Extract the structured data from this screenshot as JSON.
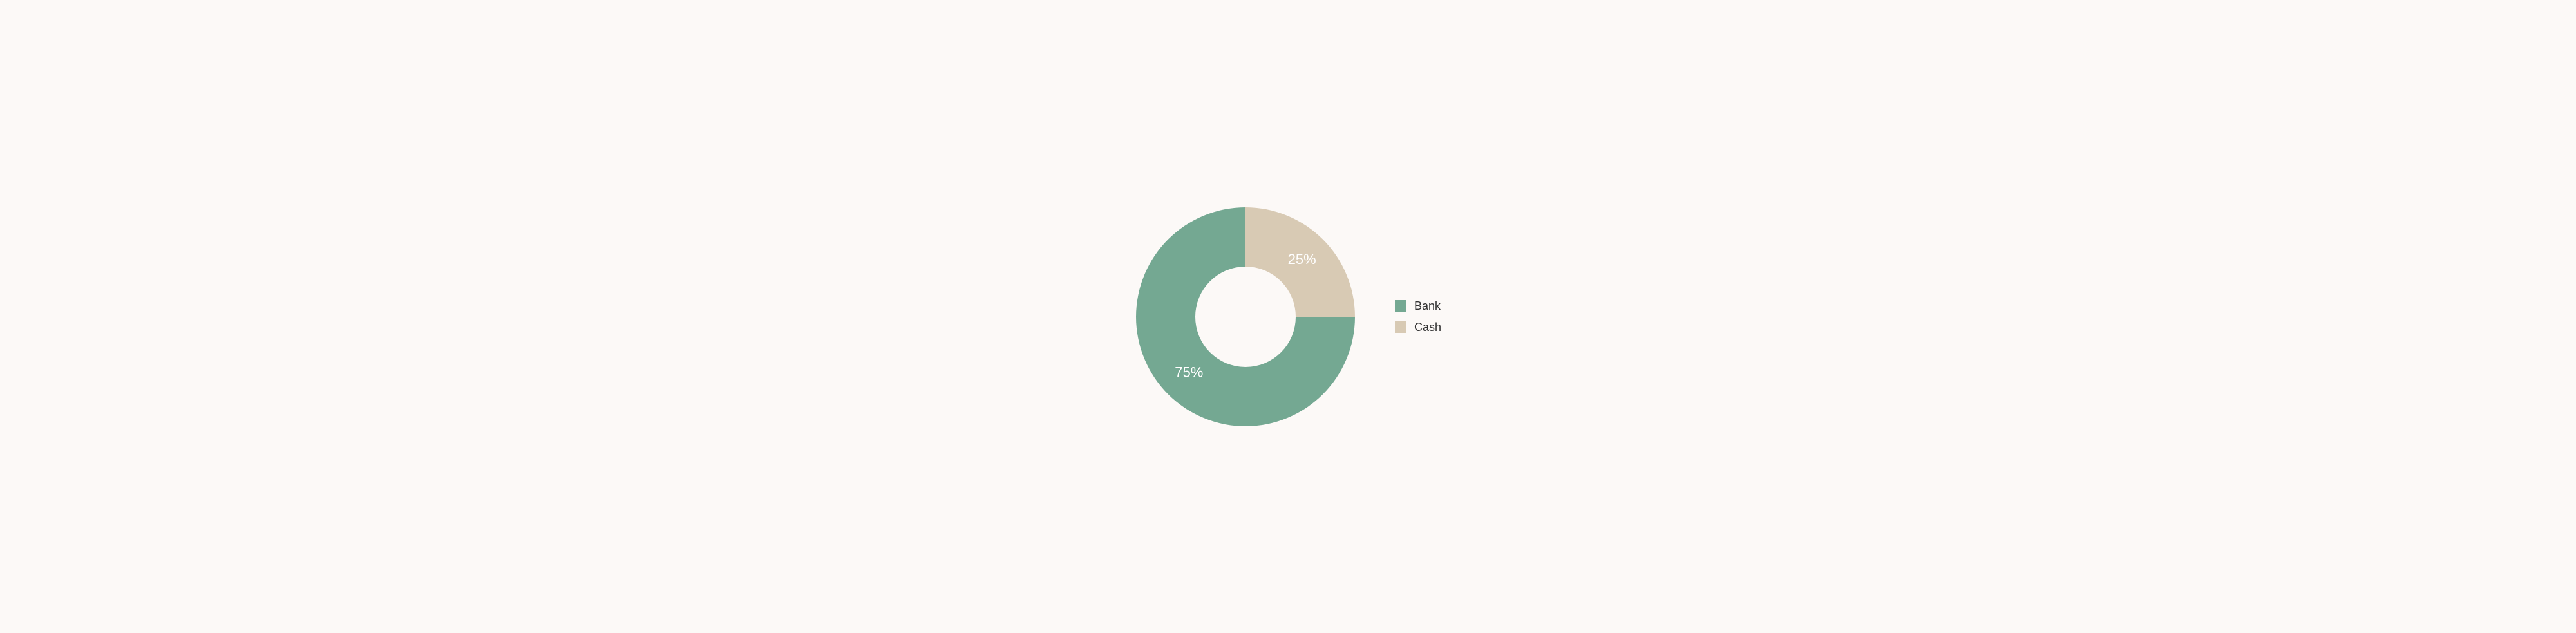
{
  "chart": {
    "type": "donut",
    "background_color": "#fcf9f7",
    "outer_radius": 170,
    "inner_radius": 78,
    "label_radius": 124,
    "label_fontsize": 22,
    "label_color": "#ffffff",
    "start_angle_deg": 0,
    "slices": [
      {
        "label": "Bank",
        "value": 75,
        "display": "75%",
        "color": "#74a892"
      },
      {
        "label": "Cash",
        "value": 25,
        "display": "25%",
        "color": "#d8cab4"
      }
    ],
    "legend": {
      "swatch_size": 18,
      "label_fontsize": 18,
      "label_color": "#333333",
      "items": [
        {
          "label": "Bank",
          "color": "#74a892"
        },
        {
          "label": "Cash",
          "color": "#d8cab4"
        }
      ]
    }
  }
}
